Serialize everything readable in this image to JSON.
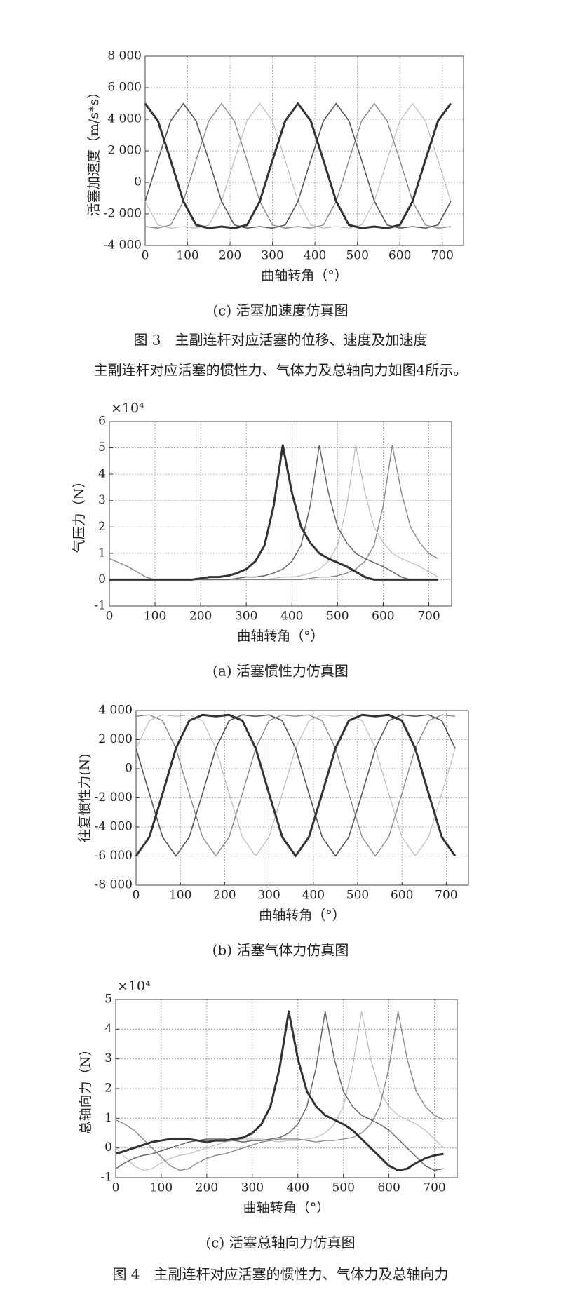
{
  "chart_data": [
    {
      "type": "line",
      "y_label": "活塞加速度（m/s*s）",
      "x_label": "曲轴转角（°）",
      "caption": "(c) 活塞加速度仿真图",
      "x": [
        0,
        30,
        60,
        90,
        120,
        150,
        180,
        210,
        240,
        270,
        300,
        330,
        360,
        390,
        420,
        450,
        480,
        510,
        540,
        570,
        600,
        630,
        660,
        690,
        720
      ],
      "xlim": [
        0,
        750
      ],
      "xticks": [
        0,
        100,
        200,
        300,
        400,
        500,
        600,
        700
      ],
      "ylim": [
        -4000,
        8000
      ],
      "yticks": [
        {
          "value": -4000,
          "label": "-4 000"
        },
        {
          "value": -2000,
          "label": "-2 000"
        },
        0,
        {
          "value": 2000,
          "label": "2 000"
        },
        {
          "value": 4000,
          "label": "4 000"
        },
        {
          "value": 6000,
          "label": "6 000"
        },
        {
          "value": 8000,
          "label": "8 000"
        }
      ],
      "grid": true,
      "series": [
        {
          "color": "#bbbbbb",
          "line_width": 1.2,
          "values": [
            -1200,
            -2700,
            -2900,
            -2800,
            -2900,
            -2700,
            -1200,
            1400,
            3900,
            5000,
            3900,
            1400,
            -1200,
            -2700,
            -2900,
            -2800,
            -2900,
            -2700,
            -1200,
            1400,
            3900,
            5000,
            3900,
            1400,
            -1200
          ]
        },
        {
          "color": "#888888",
          "line_width": 1.4,
          "values": [
            -2800,
            -2900,
            -2700,
            -1200,
            1400,
            3900,
            5000,
            3900,
            1400,
            -1200,
            -2700,
            -2900,
            -2800,
            -2900,
            -2700,
            -1200,
            1400,
            3900,
            5000,
            3900,
            1400,
            -1200,
            -2700,
            -2900,
            -2800
          ]
        },
        {
          "color": "#555555",
          "line_width": 1.6,
          "values": [
            -1200,
            1400,
            3900,
            5000,
            3900,
            1400,
            -1200,
            -2700,
            -2900,
            -2800,
            -2900,
            -2700,
            -1200,
            1400,
            3900,
            5000,
            3900,
            1400,
            -1200,
            -2700,
            -2900,
            -2800,
            -2900,
            -2700,
            -1200
          ]
        },
        {
          "color": "#333333",
          "line_width": 3,
          "values": [
            5000,
            3900,
            1400,
            -1200,
            -2700,
            -2900,
            -2800,
            -2900,
            -2700,
            -1200,
            1400,
            3900,
            5000,
            3900,
            1400,
            -1200,
            -2700,
            -2900,
            -2800,
            -2900,
            -2700,
            -1200,
            1400,
            3900,
            5000
          ]
        }
      ]
    },
    {
      "type": "line",
      "y_multiplier": "×10⁴",
      "y_label": "气压力（N）",
      "x_label": "曲轴转角（°）",
      "caption": "(a) 活塞惯性力仿真图",
      "x": [
        0,
        20,
        40,
        60,
        80,
        100,
        120,
        140,
        160,
        180,
        200,
        220,
        240,
        260,
        280,
        300,
        320,
        340,
        360,
        380,
        400,
        420,
        440,
        460,
        480,
        500,
        520,
        540,
        560,
        580,
        600,
        620,
        640,
        660,
        680,
        700,
        720
      ],
      "xlim": [
        0,
        750
      ],
      "xticks": [
        0,
        100,
        200,
        300,
        400,
        500,
        600,
        700
      ],
      "ylim": [
        -1,
        6
      ],
      "yticks": [
        -1,
        0,
        1,
        2,
        3,
        4,
        5,
        6
      ],
      "grid": true,
      "series": [
        {
          "color": "#bbbbbb",
          "line_width": 1.2,
          "values": [
            0,
            0,
            0,
            0,
            0,
            0,
            0,
            0,
            0,
            0,
            0,
            0,
            0,
            0,
            0,
            0,
            0,
            0,
            0.05,
            0.1,
            0.1,
            0.15,
            0.25,
            0.4,
            0.7,
            1.3,
            2.8,
            5.1,
            3.3,
            2.0,
            1.4,
            1.0,
            0.8,
            0.65,
            0.5,
            0.3,
            0.1
          ]
        },
        {
          "color": "#888888",
          "line_width": 1.4,
          "values": [
            0.8,
            0.65,
            0.5,
            0.3,
            0.1,
            0,
            0,
            0,
            0,
            0,
            0,
            0,
            0,
            0,
            0,
            0,
            0,
            0,
            0,
            0,
            0,
            0,
            0.05,
            0.1,
            0.1,
            0.15,
            0.25,
            0.4,
            0.7,
            1.3,
            2.8,
            5.1,
            3.3,
            2.0,
            1.4,
            1.0,
            0.8
          ]
        },
        {
          "color": "#666666",
          "line_width": 1.5,
          "values": [
            0,
            0,
            0,
            0,
            0,
            0,
            0,
            0,
            0,
            0,
            0,
            0,
            0,
            0,
            0.05,
            0.1,
            0.1,
            0.15,
            0.25,
            0.4,
            0.7,
            1.3,
            2.8,
            5.1,
            3.3,
            2.0,
            1.4,
            1.0,
            0.8,
            0.65,
            0.5,
            0.3,
            0.1,
            0,
            0,
            0,
            0
          ]
        },
        {
          "color": "#333333",
          "line_width": 3,
          "values": [
            0,
            0,
            0,
            0,
            0,
            0,
            0,
            0,
            0,
            0,
            0.05,
            0.1,
            0.1,
            0.15,
            0.25,
            0.4,
            0.7,
            1.3,
            2.8,
            5.1,
            3.3,
            2.0,
            1.4,
            1.0,
            0.8,
            0.65,
            0.5,
            0.3,
            0.1,
            0,
            0,
            0,
            0,
            0,
            0,
            0,
            0
          ]
        }
      ]
    },
    {
      "type": "line",
      "y_label": "往复惯性力(N)",
      "x_label": "曲轴转角（°）",
      "caption": "(b) 活塞气体力仿真图",
      "x": [
        0,
        30,
        60,
        90,
        120,
        150,
        180,
        210,
        240,
        270,
        300,
        330,
        360,
        390,
        420,
        450,
        480,
        510,
        540,
        570,
        600,
        630,
        660,
        690,
        720
      ],
      "xlim": [
        0,
        750
      ],
      "xticks": [
        0,
        100,
        200,
        300,
        400,
        500,
        600,
        700
      ],
      "ylim": [
        -8000,
        4000
      ],
      "yticks": [
        {
          "value": -8000,
          "label": "-8 000"
        },
        {
          "value": -6000,
          "label": "-6 000"
        },
        {
          "value": -4000,
          "label": "-4 000"
        },
        {
          "value": -2000,
          "label": "-2 000"
        },
        0,
        {
          "value": 2000,
          "label": "2 000"
        },
        {
          "value": 4000,
          "label": "4 000"
        }
      ],
      "grid": true,
      "series": [
        {
          "color": "#bbbbbb",
          "line_width": 1.2,
          "values": [
            1400,
            3300,
            3700,
            3600,
            3700,
            3300,
            1400,
            -1700,
            -4700,
            -6000,
            -4700,
            -1700,
            1400,
            3300,
            3700,
            3600,
            3700,
            3300,
            1400,
            -1700,
            -4700,
            -6000,
            -4700,
            -1700,
            1400
          ]
        },
        {
          "color": "#888888",
          "line_width": 1.4,
          "values": [
            3600,
            3700,
            3300,
            1400,
            -1700,
            -4700,
            -6000,
            -4700,
            -1700,
            1400,
            3300,
            3700,
            3600,
            3700,
            3300,
            1400,
            -1700,
            -4700,
            -6000,
            -4700,
            -1700,
            1400,
            3300,
            3700,
            3600
          ]
        },
        {
          "color": "#555555",
          "line_width": 1.6,
          "values": [
            1400,
            -1700,
            -4700,
            -6000,
            -4700,
            -1700,
            1400,
            3300,
            3700,
            3600,
            3700,
            3300,
            1400,
            -1700,
            -4700,
            -6000,
            -4700,
            -1700,
            1400,
            3300,
            3700,
            3600,
            3700,
            3300,
            1400
          ]
        },
        {
          "color": "#333333",
          "line_width": 3,
          "values": [
            -6000,
            -4700,
            -1700,
            1400,
            3300,
            3700,
            3600,
            3700,
            3300,
            1400,
            -1700,
            -4700,
            -6000,
            -4700,
            -1700,
            1400,
            3300,
            3700,
            3600,
            3700,
            3300,
            1400,
            -1700,
            -4700,
            -6000
          ]
        }
      ]
    },
    {
      "type": "line",
      "y_multiplier": "×10⁴",
      "y_label": "总轴向力（N）",
      "x_label": "曲轴转角（°）",
      "caption": "(c) 活塞总轴向力仿真图",
      "x": [
        0,
        20,
        40,
        60,
        80,
        100,
        120,
        140,
        160,
        180,
        200,
        220,
        240,
        260,
        280,
        300,
        320,
        340,
        360,
        380,
        400,
        420,
        440,
        460,
        480,
        500,
        520,
        540,
        560,
        580,
        600,
        620,
        640,
        660,
        680,
        700,
        720
      ],
      "xlim": [
        0,
        750
      ],
      "xticks": [
        0,
        100,
        200,
        300,
        400,
        500,
        600,
        700
      ],
      "ylim": [
        -1,
        5
      ],
      "yticks": [
        -1,
        0,
        1,
        2,
        3,
        4,
        5
      ],
      "grid": true,
      "series": [
        {
          "color": "#bbbbbb",
          "line_width": 1.2,
          "values": [
            0.0,
            -0.3,
            -0.6,
            -0.75,
            -0.7,
            -0.5,
            -0.35,
            -0.25,
            -0.2,
            -0.1,
            0.0,
            0.1,
            0.2,
            0.25,
            0.3,
            0.3,
            0.3,
            0.25,
            0.2,
            0.25,
            0.25,
            0.3,
            0.35,
            0.5,
            0.8,
            1.4,
            2.7,
            4.6,
            3.0,
            1.9,
            1.4,
            1.1,
            0.95,
            0.8,
            0.6,
            0.3,
            0.0
          ]
        },
        {
          "color": "#888888",
          "line_width": 1.4,
          "values": [
            0.95,
            0.8,
            0.6,
            0.3,
            0.0,
            -0.3,
            -0.6,
            -0.75,
            -0.7,
            -0.5,
            -0.35,
            -0.25,
            -0.2,
            -0.1,
            0.0,
            0.1,
            0.2,
            0.25,
            0.3,
            0.3,
            0.3,
            0.25,
            0.2,
            0.25,
            0.25,
            0.3,
            0.35,
            0.5,
            0.8,
            1.4,
            2.7,
            4.6,
            3.0,
            1.9,
            1.4,
            1.1,
            0.95
          ]
        },
        {
          "color": "#666666",
          "line_width": 1.5,
          "values": [
            -0.7,
            -0.5,
            -0.35,
            -0.25,
            -0.2,
            -0.1,
            0.0,
            0.1,
            0.2,
            0.25,
            0.3,
            0.3,
            0.3,
            0.25,
            0.2,
            0.25,
            0.25,
            0.3,
            0.35,
            0.5,
            0.8,
            1.4,
            2.7,
            4.6,
            3.0,
            1.9,
            1.4,
            1.1,
            0.95,
            0.8,
            0.6,
            0.3,
            0.0,
            -0.3,
            -0.6,
            -0.75,
            -0.7
          ]
        },
        {
          "color": "#333333",
          "line_width": 3,
          "values": [
            -0.2,
            -0.1,
            0.0,
            0.1,
            0.2,
            0.25,
            0.3,
            0.3,
            0.3,
            0.25,
            0.2,
            0.25,
            0.25,
            0.3,
            0.35,
            0.5,
            0.8,
            1.4,
            2.7,
            4.6,
            3.0,
            1.9,
            1.4,
            1.1,
            0.95,
            0.8,
            0.6,
            0.3,
            0.0,
            -0.3,
            -0.6,
            -0.75,
            -0.7,
            -0.5,
            -0.35,
            -0.25,
            -0.2
          ]
        }
      ]
    }
  ],
  "page": {
    "figure3_caption": "图 3　主副连杆对应活塞的位移、速度及加速度",
    "paragraph": "主副连杆对应活塞的惯性力、气体力及总轴向力如图4所示。",
    "figure4_caption": "图 4　主副连杆对应活塞的惯性力、气体力及总轴向力"
  }
}
